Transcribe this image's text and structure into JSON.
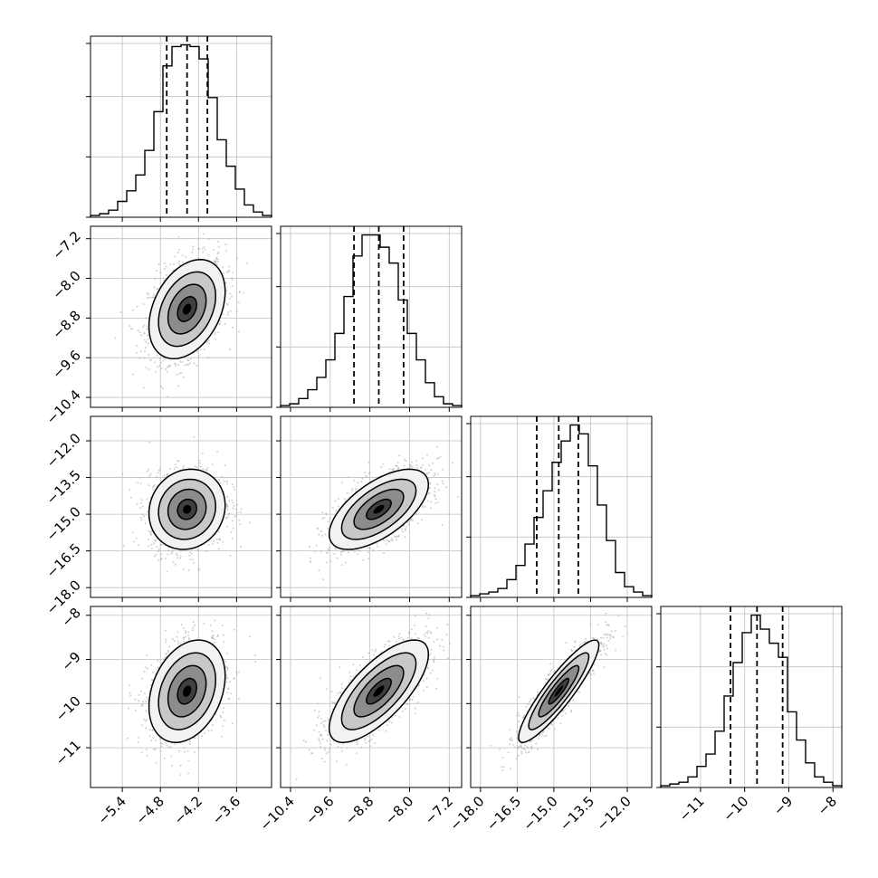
{
  "chart_data": {
    "type": "corner",
    "parameters": 4,
    "axes": [
      {
        "range": [
          -5.9,
          -3.05
        ],
        "ticks": [
          -5.4,
          -4.8,
          -4.2,
          -3.6
        ],
        "tick_labels": [
          "−5.4",
          "−4.8",
          "−4.2",
          "−3.6"
        ]
      },
      {
        "range": [
          -10.6,
          -6.95
        ],
        "ticks": [
          -10.4,
          -9.6,
          -8.8,
          -8.0,
          -7.2
        ],
        "tick_labels": [
          "−10.4",
          "−9.6",
          "−8.8",
          "−8.0",
          "−7.2"
        ]
      },
      {
        "range": [
          -18.4,
          -11.0
        ],
        "ticks": [
          -18.0,
          -16.5,
          -15.0,
          -13.5,
          -12.0
        ],
        "tick_labels": [
          "−18.0",
          "−16.5",
          "−15.0",
          "−13.5",
          "−12.0"
        ]
      },
      {
        "range": [
          -11.9,
          -7.8
        ],
        "ticks": [
          -11,
          -10,
          -9,
          -8
        ],
        "tick_labels": [
          "−11",
          "−10",
          "−9",
          "−8"
        ]
      }
    ],
    "quantiles": [
      {
        "low": -4.7,
        "median": -4.38,
        "high": -4.06
      },
      {
        "low": -9.12,
        "median": -8.62,
        "high": -8.12
      },
      {
        "low": -15.7,
        "median": -14.8,
        "high": -14.0
      },
      {
        "low": -10.32,
        "median": -9.72,
        "high": -9.14
      }
    ],
    "grid": true,
    "histograms": [
      {
        "edges_start": -5.9,
        "bin_width": 0.1425,
        "counts": [
          1,
          2,
          4,
          9,
          15,
          24,
          38,
          60,
          86,
          97,
          98,
          97,
          90,
          68,
          44,
          29,
          16,
          7,
          3,
          1
        ]
      },
      {
        "edges_start": -10.6,
        "bin_width": 0.1825,
        "counts": [
          1,
          2,
          5,
          10,
          17,
          27,
          42,
          63,
          86,
          98,
          98,
          91,
          82,
          61,
          42,
          27,
          14,
          6,
          2,
          1
        ]
      },
      {
        "edges_start": -18.4,
        "bin_width": 0.37,
        "counts": [
          1,
          2,
          3,
          5,
          10,
          18,
          30,
          45,
          60,
          76,
          88,
          97,
          92,
          74,
          52,
          32,
          14,
          6,
          3,
          1
        ]
      },
      {
        "edges_start": -11.9,
        "bin_width": 0.205,
        "counts": [
          1,
          2,
          3,
          6,
          12,
          19,
          32,
          52,
          71,
          88,
          98,
          90,
          82,
          74,
          43,
          27,
          14,
          6,
          3,
          1
        ]
      }
    ],
    "pair_fits": [
      {
        "i": 1,
        "j": 0,
        "mean": [
          -4.38,
          -8.62
        ],
        "sd": [
          0.3,
          0.5
        ],
        "rho": 0.35
      },
      {
        "i": 2,
        "j": 0,
        "mean": [
          -4.38,
          -14.8
        ],
        "sd": [
          0.3,
          0.82
        ],
        "rho": 0.1
      },
      {
        "i": 2,
        "j": 1,
        "mean": [
          -8.62,
          -14.8
        ],
        "sd": [
          0.5,
          0.82
        ],
        "rho": 0.62
      },
      {
        "i": 3,
        "j": 0,
        "mean": [
          -4.38,
          -9.72
        ],
        "sd": [
          0.3,
          0.58
        ],
        "rho": 0.3
      },
      {
        "i": 3,
        "j": 1,
        "mean": [
          -8.62,
          -9.72
        ],
        "sd": [
          0.5,
          0.58
        ],
        "rho": 0.72
      },
      {
        "i": 3,
        "j": 2,
        "mean": [
          -14.8,
          -9.72
        ],
        "sd": [
          0.82,
          0.58
        ],
        "rho": 0.9
      }
    ],
    "contour_levels_sigma": [
      0.5,
      1.0,
      1.5,
      2.0
    ]
  }
}
